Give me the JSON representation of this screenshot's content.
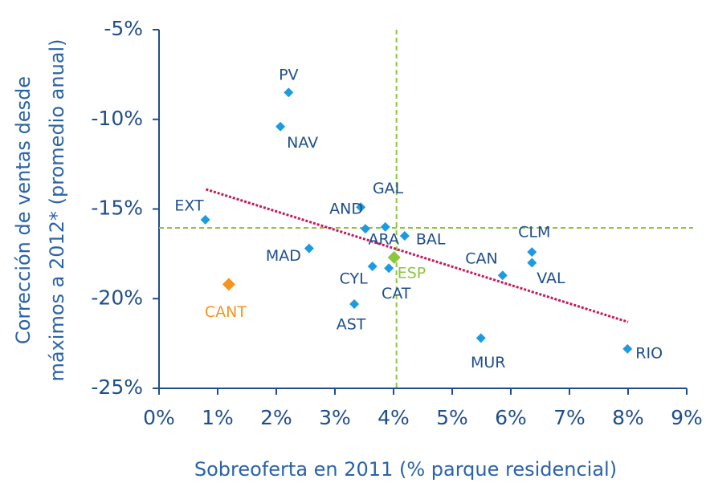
{
  "chart_data": {
    "type": "scatter",
    "x_label": "Sobreoferta en 2011 (% parque residencial)",
    "y_label": [
      "Corrección de ventas desde",
      "máximos a 2012* (promedio anual)"
    ],
    "labels": [
      "PV",
      "NAV",
      "EXT",
      "GAL",
      "AND",
      "ARA",
      "BAL",
      "MAD",
      "CYL",
      "CAT",
      "ESP",
      "CAN",
      "CLM",
      "VAL",
      "CANT",
      "AST",
      "MUR",
      "RIO"
    ],
    "x": [
      2.21,
      2.07,
      0.79,
      3.44,
      3.52,
      3.86,
      4.19,
      2.56,
      3.64,
      3.92,
      4.01,
      5.86,
      6.36,
      6.36,
      1.19,
      3.33,
      5.49,
      7.99
    ],
    "y": [
      -8.5,
      -10.4,
      -15.6,
      -14.9,
      -16.1,
      -16.0,
      -16.5,
      -17.2,
      -18.2,
      -18.3,
      -17.7,
      -18.7,
      -17.4,
      -18.0,
      -19.2,
      -20.3,
      -22.2,
      -22.8
    ],
    "colors": [
      "#1e9be0",
      "#1e9be0",
      "#1e9be0",
      "#1e9be0",
      "#1e9be0",
      "#1e9be0",
      "#1e9be0",
      "#1e9be0",
      "#1e9be0",
      "#1e9be0",
      "#8cc63f",
      "#1e9be0",
      "#1e9be0",
      "#1e9be0",
      "#f7941d",
      "#1e9be0",
      "#1e9be0",
      "#1e9be0"
    ],
    "label_colors": [
      "#1f4e8c",
      "#1f4e8c",
      "#1f4e8c",
      "#1f4e8c",
      "#1f4e8c",
      "#1f4e8c",
      "#1f4e8c",
      "#1f4e8c",
      "#1f4e8c",
      "#1f4e8c",
      "#8cc63f",
      "#1f4e8c",
      "#1f4e8c",
      "#1f4e8c",
      "#f7941d",
      "#1f4e8c",
      "#1f4e8c",
      "#1f4e8c"
    ],
    "trendline": {
      "x": [
        0.8,
        8.0
      ],
      "y": [
        -13.9,
        -21.3
      ],
      "color": "#c8175d"
    },
    "reference_lines": {
      "x": 4.05,
      "y": -16.05,
      "color": "#8cc63f"
    },
    "xlim": [
      0,
      9
    ],
    "xticks": [
      {
        "value": 0,
        "label": "0%"
      },
      {
        "value": 1,
        "label": "1%"
      },
      {
        "value": 2,
        "label": "2%"
      },
      {
        "value": 3,
        "label": "3%"
      },
      {
        "value": 4,
        "label": "4%"
      },
      {
        "value": 5,
        "label": "5%"
      },
      {
        "value": 6,
        "label": "6%"
      },
      {
        "value": 7,
        "label": "7%"
      },
      {
        "value": 8,
        "label": "8%"
      },
      {
        "value": 9,
        "label": "9%"
      }
    ],
    "ylim": [
      -25,
      -5
    ],
    "yticks": [
      {
        "value": -25,
        "label": "-25%"
      },
      {
        "value": -20,
        "label": "-20%"
      },
      {
        "value": -15,
        "label": "-15%"
      },
      {
        "value": -10,
        "label": "-10%"
      },
      {
        "value": -5,
        "label": "-5%"
      }
    ]
  }
}
